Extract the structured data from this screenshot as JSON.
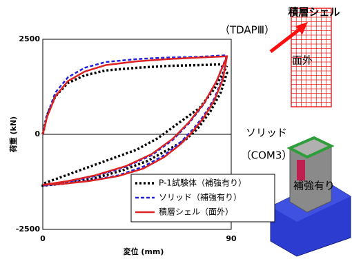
{
  "chart_data": {
    "type": "line",
    "x_label": "変位 (mm)",
    "y_label": "荷重 (kN)",
    "xlim": [
      0,
      90
    ],
    "xticks": [
      0,
      90
    ],
    "ylim": [
      -2500,
      2500
    ],
    "yticks": [
      -2500,
      0,
      2500
    ],
    "legend": "lower right",
    "series": [
      {
        "name": "P-1試験体（補強有り）",
        "color": "#000000",
        "linestyle": "dotted",
        "x": [
          0,
          2,
          6,
          12,
          20,
          30,
          45,
          60,
          75,
          85,
          88,
          85,
          80,
          74,
          68,
          60,
          50,
          38,
          25,
          12,
          0,
          0,
          15,
          30,
          45,
          55,
          65,
          75,
          82,
          88
        ],
        "y": [
          0,
          500,
          1000,
          1350,
          1550,
          1680,
          1750,
          1800,
          1820,
          1840,
          1620,
          1100,
          600,
          150,
          -150,
          -400,
          -700,
          -950,
          -1150,
          -1280,
          -1350,
          -1300,
          -1000,
          -700,
          -400,
          -100,
          300,
          700,
          1200,
          1800
        ]
      },
      {
        "name": "ソリッド（補強有り）",
        "color": "#2222dd",
        "linestyle": "dashed",
        "x": [
          0,
          2,
          6,
          12,
          20,
          30,
          45,
          60,
          75,
          88,
          86,
          82,
          77,
          72,
          66,
          58,
          48,
          36,
          22,
          10,
          0,
          12,
          25,
          40,
          52,
          62,
          70,
          77,
          83,
          88
        ],
        "y": [
          0,
          500,
          1100,
          1500,
          1750,
          1900,
          1980,
          2020,
          2040,
          2080,
          1500,
          950,
          500,
          150,
          -200,
          -550,
          -850,
          -1080,
          -1220,
          -1300,
          -1350,
          -1250,
          -1100,
          -850,
          -550,
          -150,
          300,
          800,
          1400,
          2080
        ]
      },
      {
        "name": "積層シェル（面外）",
        "color": "#dd2222",
        "linestyle": "solid",
        "x": [
          0,
          2,
          6,
          12,
          20,
          30,
          45,
          60,
          75,
          88,
          86,
          82,
          77,
          72,
          66,
          58,
          48,
          36,
          22,
          10,
          0,
          12,
          25,
          40,
          52,
          62,
          70,
          77,
          83,
          88
        ],
        "y": [
          0,
          450,
          1000,
          1400,
          1650,
          1820,
          1920,
          1980,
          2020,
          2050,
          1450,
          900,
          450,
          100,
          -250,
          -600,
          -900,
          -1100,
          -1230,
          -1300,
          -1330,
          -1230,
          -1080,
          -830,
          -520,
          -120,
          330,
          820,
          1400,
          2050
        ]
      }
    ]
  },
  "annotations": [
    "積層シェル",
    "（TDAPⅢ）",
    "面外",
    "ソリッド",
    "（COM3）",
    "補強有り"
  ]
}
